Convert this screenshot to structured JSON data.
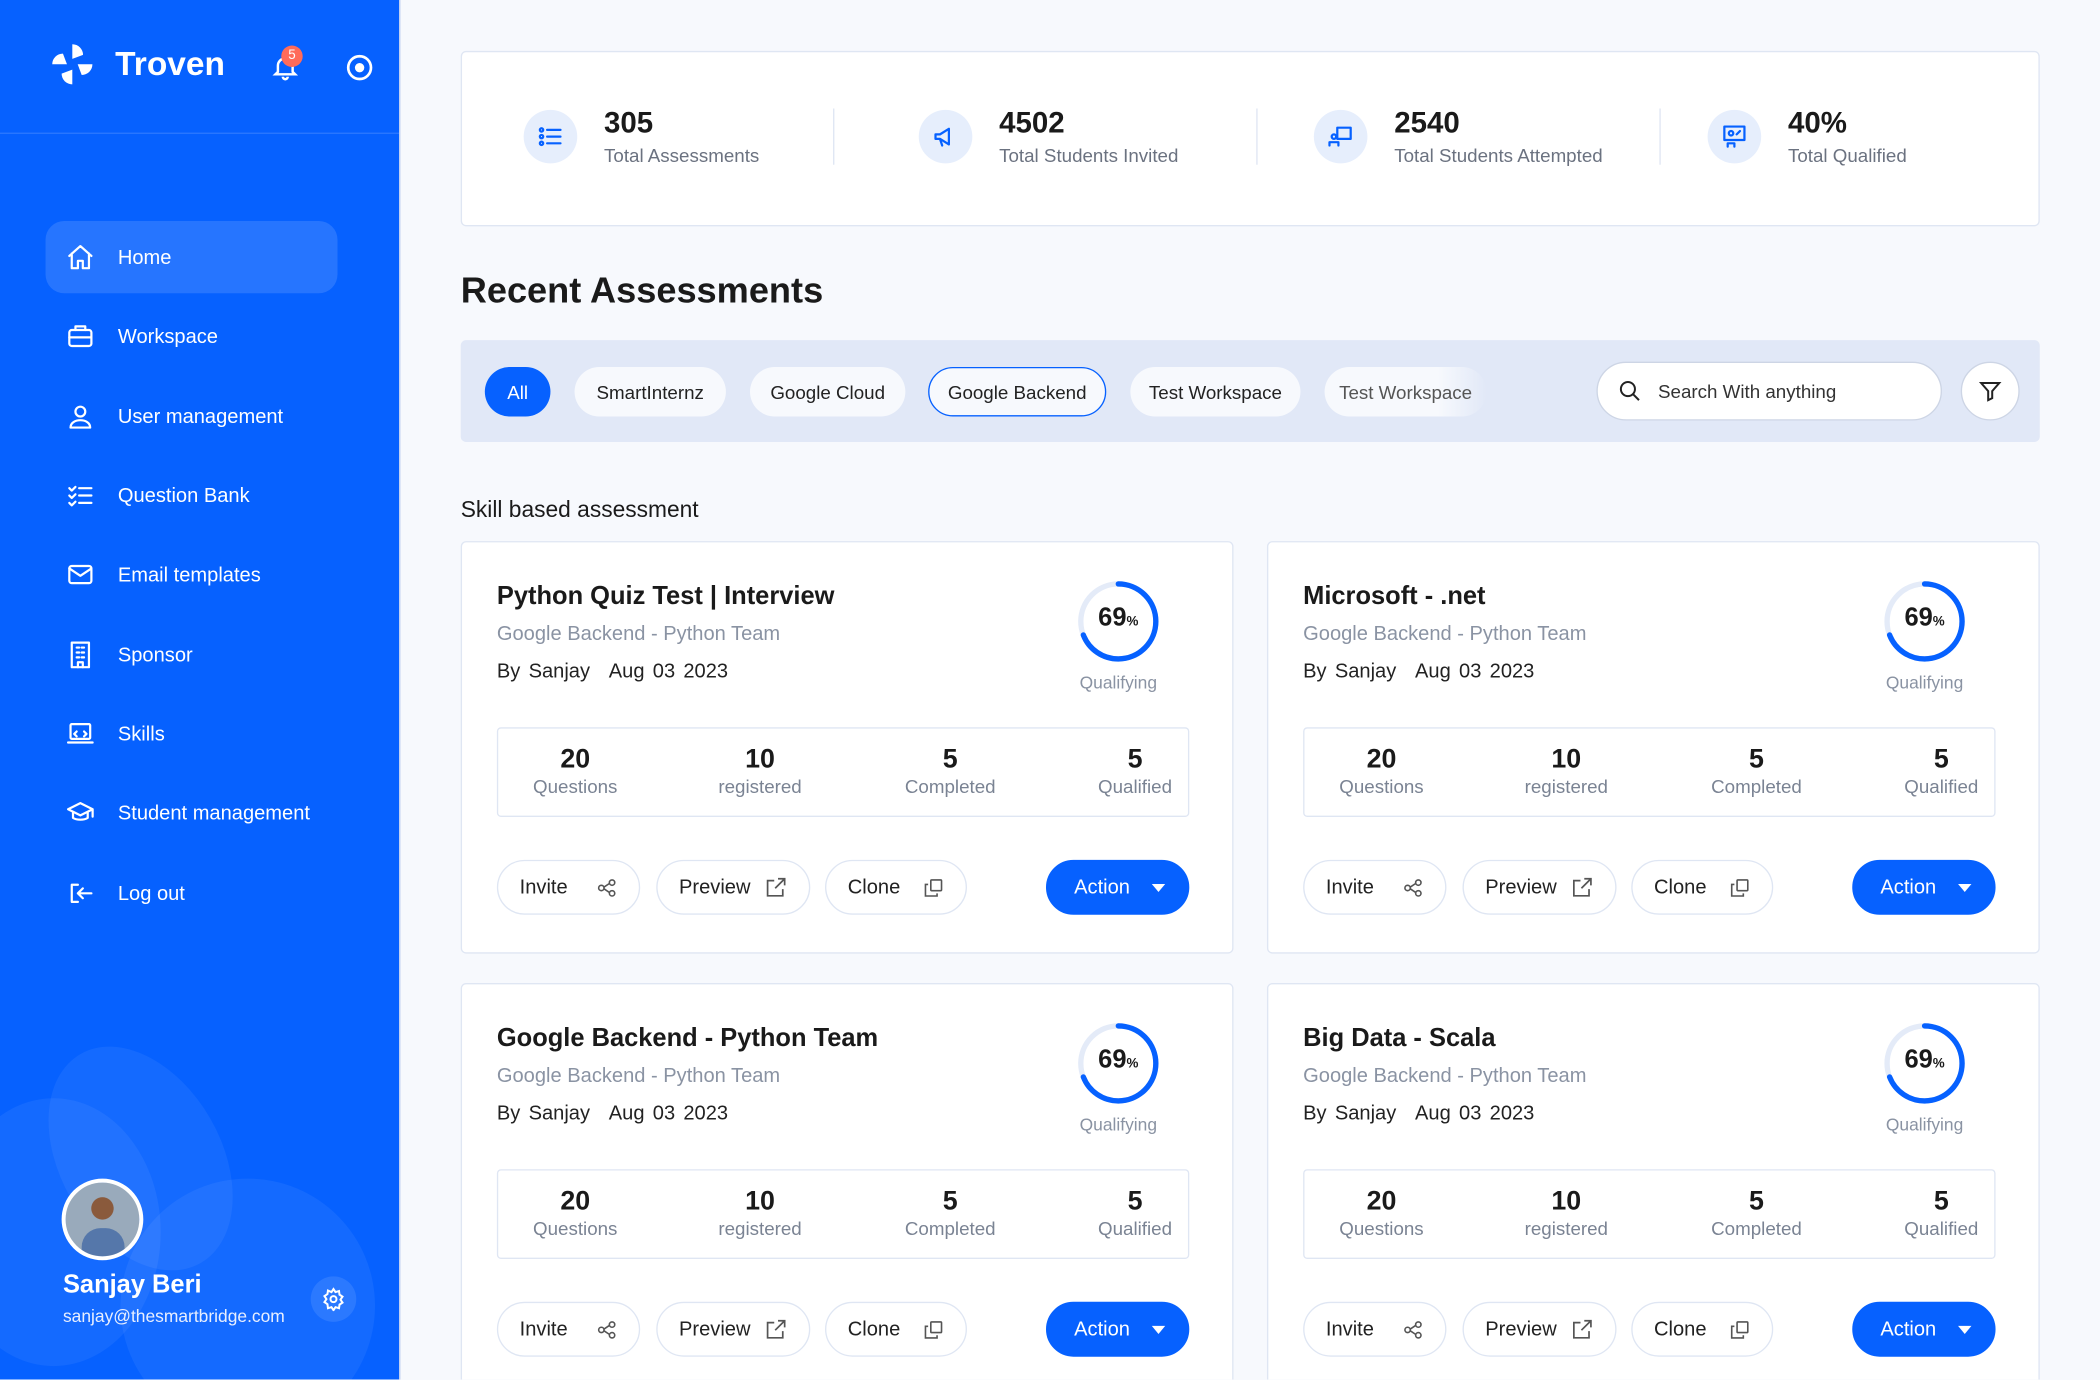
{
  "app": {
    "name": "Troven",
    "notifications": "5",
    "accent": "#0661ff"
  },
  "sidebar": {
    "items": [
      {
        "label": "Home",
        "icon": "home-icon",
        "active": true
      },
      {
        "label": "Workspace",
        "icon": "briefcase-icon"
      },
      {
        "label": "User management",
        "icon": "user-icon"
      },
      {
        "label": "Question Bank",
        "icon": "list-check-icon"
      },
      {
        "label": "Email templates",
        "icon": "mail-icon"
      },
      {
        "label": "Sponsor",
        "icon": "building-icon"
      },
      {
        "label": "Skills",
        "icon": "laptop-icon"
      },
      {
        "label": "Student management",
        "icon": "graduation-cap-icon"
      },
      {
        "label": "Log out",
        "icon": "logout-icon"
      }
    ],
    "user": {
      "name": "Sanjay Beri",
      "email": "sanjay@thesmartbridge.com"
    }
  },
  "stats": [
    {
      "value": "305",
      "label": "Total Assessments",
      "icon": "list-icon"
    },
    {
      "value": "4502",
      "label": "Total Students Invited",
      "icon": "megaphone-icon"
    },
    {
      "value": "2540",
      "label": "Total Students Attempted",
      "icon": "student-screen-icon"
    },
    {
      "value": "40%",
      "label": "Total Qualified",
      "icon": "presentation-icon"
    }
  ],
  "main": {
    "title": "Recent Assessments",
    "section": "Skill based assessment",
    "filters": [
      "All",
      "SmartInternz",
      "Google Cloud",
      "Google Backend",
      "Test Workspace",
      "Test Workspace"
    ],
    "search_placeholder": "Search With anything"
  },
  "labels": {
    "questions": "Questions",
    "registered": "registered",
    "completed": "Completed",
    "qualified": "Qualified",
    "qualifying": "Qualifying",
    "invite": "Invite",
    "preview": "Preview",
    "clone": "Clone",
    "action": "Action"
  },
  "assessments": [
    {
      "title": "Python Quiz Test | Interview",
      "team": "Google Backend - Python Team",
      "by": "By Sanjay",
      "date": "Aug 03 2023",
      "percent": 69,
      "percent_text": "69",
      "questions": "20",
      "registered": "10",
      "completed": "5",
      "qualified": "5"
    },
    {
      "title": "Microsoft - .net",
      "team": "Google Backend - Python Team",
      "by": "By Sanjay",
      "date": "Aug 03 2023",
      "percent": 69,
      "percent_text": "69",
      "questions": "20",
      "registered": "10",
      "completed": "5",
      "qualified": "5"
    },
    {
      "title": "Google Backend - Python Team",
      "team": "Google Backend - Python Team",
      "by": "By Sanjay",
      "date": "Aug 03 2023",
      "percent": 69,
      "percent_text": "69",
      "questions": "20",
      "registered": "10",
      "completed": "5",
      "qualified": "5"
    },
    {
      "title": "Big Data - Scala",
      "team": "Google Backend - Python Team",
      "by": "By Sanjay",
      "date": "Aug 03 2023",
      "percent": 69,
      "percent_text": "69",
      "questions": "20",
      "registered": "10",
      "completed": "5",
      "qualified": "5"
    }
  ]
}
